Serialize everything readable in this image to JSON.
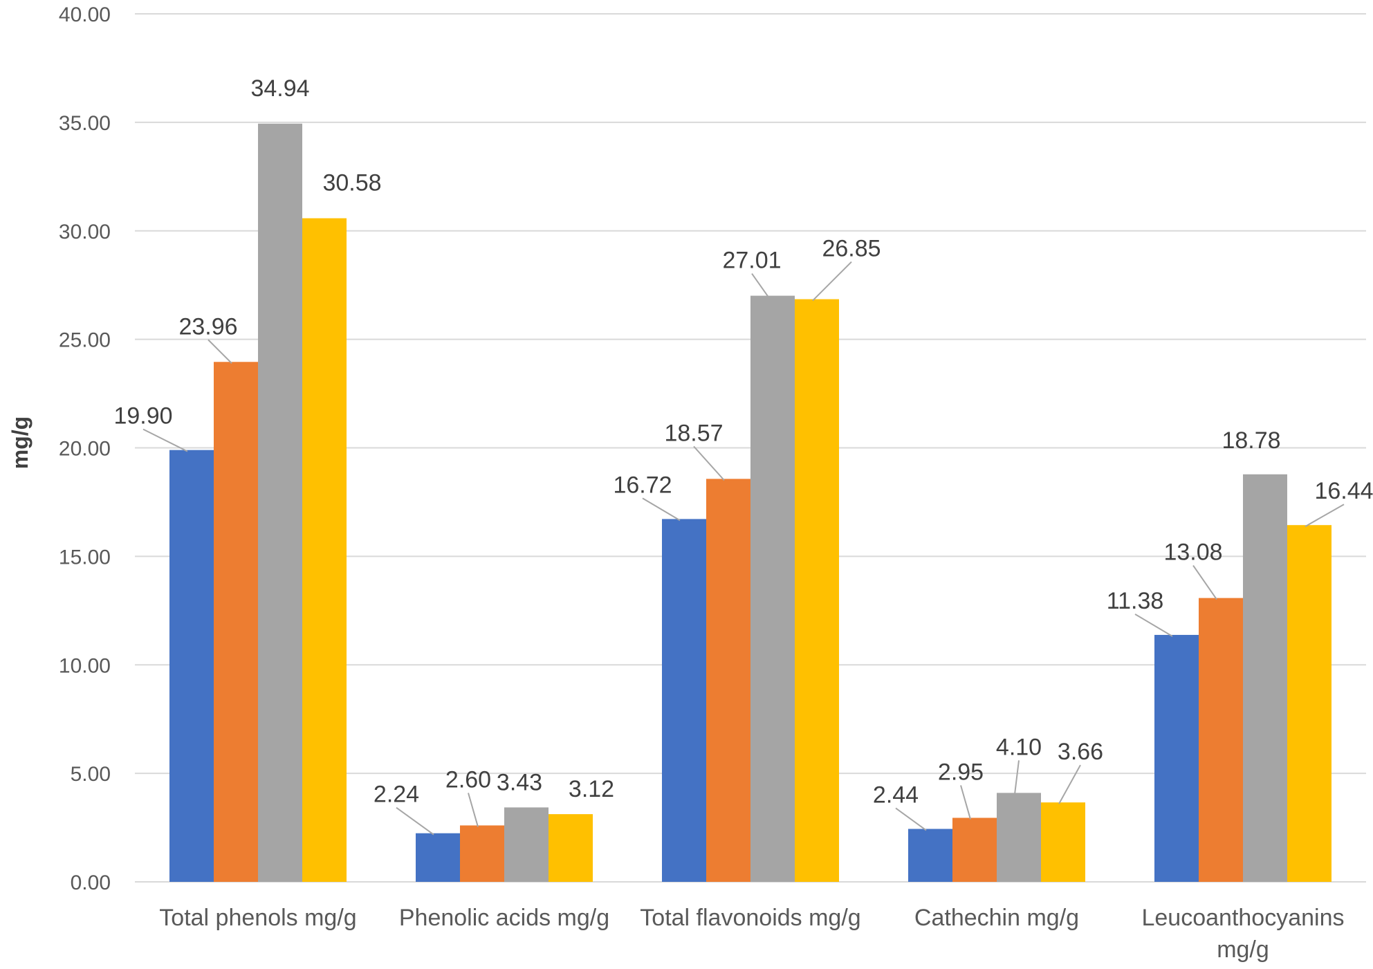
{
  "chart_data": {
    "type": "bar",
    "title": "",
    "xlabel": "",
    "ylabel": "mg/g",
    "ylim": [
      0,
      40
    ],
    "ytick_step": 5,
    "ytick_labels": [
      "0.00",
      "5.00",
      "10.00",
      "15.00",
      "20.00",
      "25.00",
      "30.00",
      "35.00",
      "40.00"
    ],
    "grid": true,
    "legend": "none",
    "categories": [
      [
        "Total phenols mg/g"
      ],
      [
        "Phenolic acids mg/g"
      ],
      [
        "Total flavonoids mg/g"
      ],
      [
        "Cathechin mg/g"
      ],
      [
        "Leucoanthocyanins",
        "mg/g"
      ]
    ],
    "series": [
      {
        "name": "Series 1",
        "color": "#4472C4",
        "values": [
          19.9,
          2.24,
          16.72,
          2.44,
          11.38
        ],
        "labels": [
          "19.90",
          "2.24",
          "16.72",
          "2.44",
          "11.38"
        ]
      },
      {
        "name": "Series 2",
        "color": "#ED7D31",
        "values": [
          23.96,
          2.6,
          18.57,
          2.95,
          13.08
        ],
        "labels": [
          "23.96",
          "2.60",
          "18.57",
          "2.95",
          "13.08"
        ]
      },
      {
        "name": "Series 3",
        "color": "#A5A5A5",
        "values": [
          34.94,
          3.43,
          27.01,
          4.1,
          18.78
        ],
        "labels": [
          "34.94",
          "3.43",
          "27.01",
          "4.10",
          "18.78"
        ]
      },
      {
        "name": "Series 4",
        "color": "#FFC000",
        "values": [
          30.58,
          3.12,
          26.85,
          3.66,
          16.44
        ],
        "labels": [
          "30.58",
          "3.12",
          "26.85",
          "3.66",
          "16.44"
        ]
      }
    ]
  }
}
